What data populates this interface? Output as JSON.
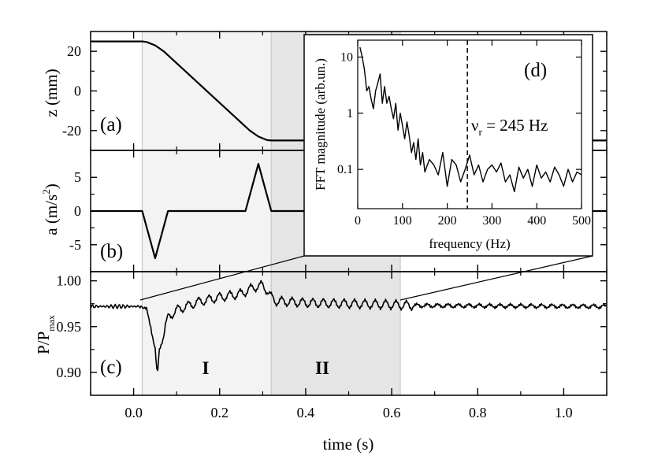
{
  "chart_data": [
    {
      "panel": "(a)",
      "type": "line",
      "ylabel": "z (mm)",
      "ylim": [
        -30,
        30
      ],
      "yticks": [
        "20",
        "0",
        "-20"
      ],
      "ytick_values": [
        20,
        0,
        -20
      ],
      "x": [
        -0.1,
        0.02,
        0.03,
        0.05,
        0.07,
        0.27,
        0.29,
        0.31,
        0.32,
        1.1
      ],
      "y": [
        25,
        25,
        24.7,
        23,
        20,
        -20,
        -23,
        -24.8,
        -25,
        -25
      ]
    },
    {
      "panel": "(b)",
      "type": "line",
      "ylabel": "a (m/s²)",
      "ylabel_base": "a (m/s",
      "ylabel_sup": "2",
      "ylabel_end": ")",
      "ylim": [
        -9,
        9
      ],
      "yticks": [
        "5",
        "0",
        "-5"
      ],
      "ytick_values": [
        5,
        0,
        -5
      ],
      "x": [
        -0.1,
        0.02,
        0.05,
        0.08,
        0.26,
        0.29,
        0.32,
        1.1
      ],
      "y": [
        0,
        0,
        -7,
        0,
        0,
        7,
        0,
        0
      ]
    },
    {
      "panel": "(c)",
      "type": "line",
      "ylabel": "P/Pmax",
      "ylabel_base": "P/P",
      "ylabel_sub": "max",
      "ylim": [
        0.875,
        1.01
      ],
      "yticks": [
        "1.00",
        "0.95",
        "0.90"
      ],
      "ytick_values": [
        1.0,
        0.95,
        0.9
      ],
      "xlabel": "time (s)",
      "xlim": [
        -0.1,
        1.1
      ],
      "xticks": [
        "0.0",
        "0.2",
        "0.4",
        "0.6",
        "0.8",
        "1.0"
      ],
      "xtick_values": [
        0.0,
        0.2,
        0.4,
        0.6,
        0.8,
        1.0
      ],
      "baseline": 0.972,
      "x": [
        0.02,
        0.03,
        0.04,
        0.05,
        0.055,
        0.06,
        0.07,
        0.075,
        0.08,
        0.1,
        0.15,
        0.2,
        0.25,
        0.28,
        0.3,
        0.31,
        0.32,
        0.33,
        0.4,
        0.5,
        0.6,
        0.65,
        1.1
      ],
      "y": [
        0.972,
        0.968,
        0.95,
        0.925,
        0.895,
        0.925,
        0.94,
        0.955,
        0.96,
        0.968,
        0.977,
        0.982,
        0.986,
        0.993,
        0.995,
        0.99,
        0.982,
        0.978,
        0.976,
        0.975,
        0.974,
        0.973,
        0.972
      ],
      "regions": [
        {
          "label": "I",
          "x": [
            0.02,
            0.32
          ]
        },
        {
          "label": "II",
          "x": [
            0.32,
            0.62
          ]
        }
      ]
    },
    {
      "panel": "(d)",
      "type": "line",
      "inset": true,
      "xlabel": "frequency (Hz)",
      "ylabel": "FFT magnitude (arb.un.)",
      "xlim": [
        0,
        500
      ],
      "ylim": [
        0.02,
        20
      ],
      "yscale": "log",
      "xticks": [
        "0",
        "100",
        "200",
        "300",
        "400",
        "500"
      ],
      "xtick_values": [
        0,
        100,
        200,
        300,
        400,
        500
      ],
      "yticks": [
        "10",
        "1",
        "0.1"
      ],
      "ytick_values": [
        10,
        1,
        0.1
      ],
      "annotation": "νr = 245 Hz",
      "annotation_base": "ν",
      "annotation_sub": "r",
      "annotation_rest": " = 245 Hz",
      "vline": 245,
      "x": [
        5,
        10,
        15,
        20,
        25,
        30,
        35,
        40,
        45,
        50,
        55,
        60,
        65,
        70,
        75,
        80,
        85,
        90,
        95,
        100,
        105,
        110,
        115,
        120,
        125,
        130,
        135,
        140,
        145,
        150,
        160,
        170,
        180,
        190,
        200,
        210,
        220,
        230,
        240,
        250,
        260,
        270,
        280,
        290,
        300,
        310,
        320,
        330,
        340,
        350,
        360,
        370,
        380,
        390,
        400,
        410,
        420,
        430,
        440,
        450,
        460,
        470,
        480,
        490,
        500
      ],
      "y": [
        15,
        10,
        6,
        2.5,
        3,
        1.8,
        1.2,
        2.5,
        3.5,
        5,
        1.5,
        3,
        1.5,
        2,
        1.2,
        0.8,
        1.5,
        0.5,
        1,
        0.6,
        0.35,
        0.7,
        0.4,
        0.2,
        0.3,
        0.15,
        0.35,
        0.12,
        0.2,
        0.09,
        0.15,
        0.12,
        0.08,
        0.2,
        0.05,
        0.15,
        0.12,
        0.06,
        0.1,
        0.18,
        0.08,
        0.12,
        0.06,
        0.1,
        0.12,
        0.09,
        0.13,
        0.06,
        0.08,
        0.04,
        0.11,
        0.07,
        0.1,
        0.05,
        0.12,
        0.07,
        0.09,
        0.06,
        0.11,
        0.08,
        0.05,
        0.1,
        0.06,
        0.09,
        0.08
      ]
    }
  ]
}
